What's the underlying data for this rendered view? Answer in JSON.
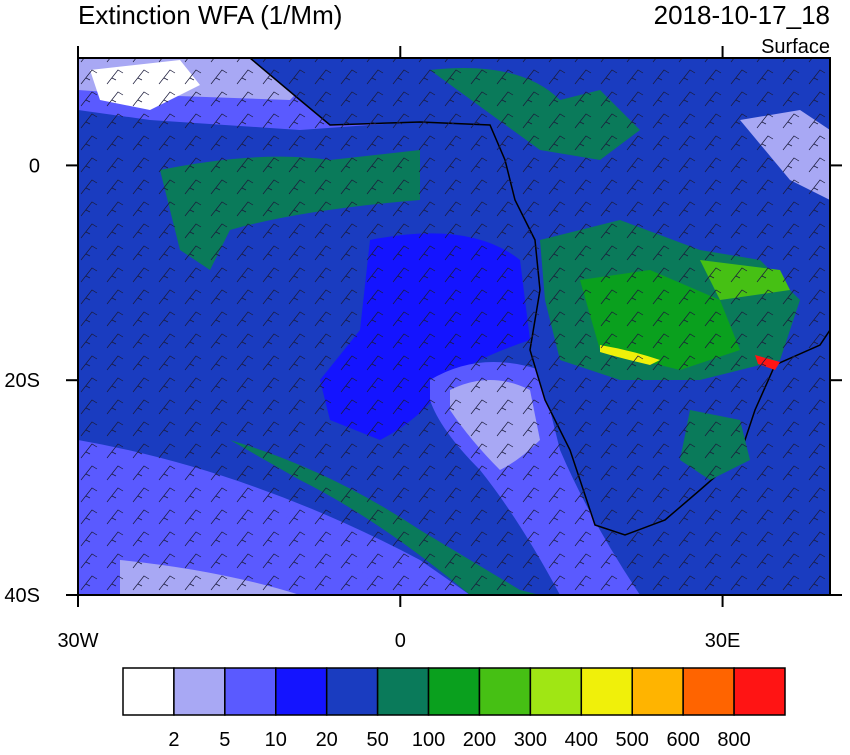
{
  "map": {
    "title": "Extinction WFA (1/Mm)",
    "time": "2018-10-17_18",
    "level": "Surface",
    "xlim": [
      -30,
      40
    ],
    "ylim": [
      -40,
      10
    ],
    "xticks": [
      {
        "value": -30,
        "label": "30W"
      },
      0,
      {
        "value": 30,
        "label": "30E"
      }
    ],
    "yticks": [
      0,
      {
        "value": -20,
        "label": "20S"
      },
      {
        "value": -40,
        "label": "40S"
      }
    ]
  },
  "colorbar": {
    "colors": [
      "#ffffff",
      "#a8a8f4",
      "#5a5aff",
      "#1414ff",
      "#1a3cc0",
      "#0a7a5a",
      "#0aa01e",
      "#46c014",
      "#a0e614",
      "#f0f00a",
      "#ffb400",
      "#ff6400",
      "#ff1414"
    ],
    "labels": [
      2,
      5,
      10,
      20,
      50,
      100,
      200,
      300,
      400,
      500,
      600,
      800
    ]
  }
}
